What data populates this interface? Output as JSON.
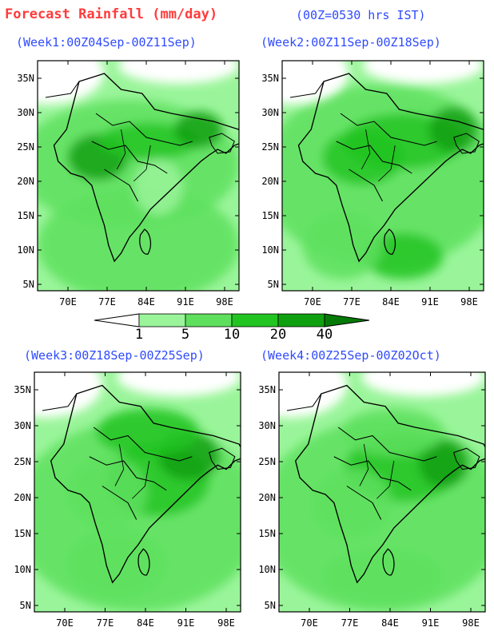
{
  "header": {
    "title": "Forecast Rainfall (mm/day)",
    "time_note": "(00Z=0530 hrs IST)"
  },
  "panels": [
    {
      "title": "(Week1:00Z04Sep-00Z11Sep)"
    },
    {
      "title": "(Week2:00Z11Sep-00Z18Sep)"
    },
    {
      "title": "(Week3:00Z18Sep-00Z25Sep)"
    },
    {
      "title": "(Week4:00Z25Sep-00Z02Oct)"
    }
  ],
  "axes": {
    "lat_ticks": [
      "35N",
      "30N",
      "25N",
      "20N",
      "15N",
      "10N",
      "5N"
    ],
    "lon_ticks": [
      "70E",
      "77E",
      "84E",
      "91E",
      "98E"
    ]
  },
  "colorbar": {
    "labels": [
      "1",
      "5",
      "10",
      "20",
      "40"
    ],
    "colors": [
      "#ffffff",
      "#9af59a",
      "#5ee05e",
      "#22c422",
      "#0fa00f",
      "#067a06"
    ]
  }
}
